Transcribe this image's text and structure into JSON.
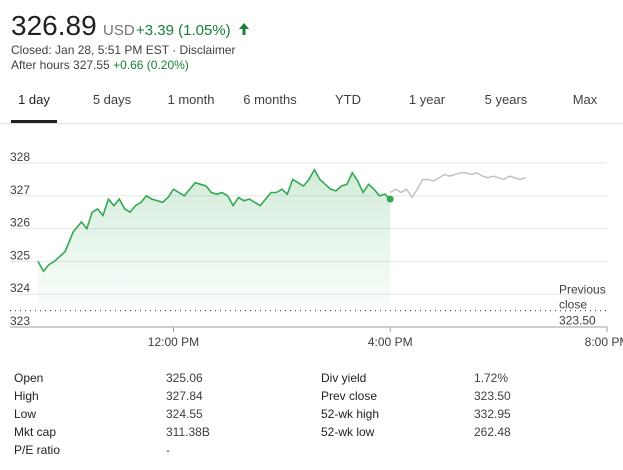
{
  "quote": {
    "price": "326.89",
    "currency": "USD",
    "change": "+3.39 (1.05%)",
    "closed_text": "Closed: Jan 28, 5:51 PM EST · ",
    "disclaimer": "Disclaimer",
    "after_hours_label": "After hours 327.55 ",
    "after_hours_change": "+0.66 (0.20%)",
    "accent_color": "#188038",
    "up_icon": "arrow-up-icon"
  },
  "tabs": [
    {
      "label": "1 day",
      "active": true
    },
    {
      "label": "5 days"
    },
    {
      "label": "1 month"
    },
    {
      "label": "6 months"
    },
    {
      "label": "YTD"
    },
    {
      "label": "1 year"
    },
    {
      "label": "5 years"
    },
    {
      "label": "Max"
    }
  ],
  "chart_data": {
    "type": "line",
    "ylim": [
      323,
      328.6
    ],
    "y_ticks": [
      "328",
      "327",
      "326",
      "325",
      "324",
      "323"
    ],
    "x_ticks": [
      "12:00 PM",
      "4:00 PM",
      "8:00 PM"
    ],
    "previous_close_label": [
      "Previous",
      "close"
    ],
    "previous_close_value": "323.50",
    "previous_close": 323.5,
    "grid": true,
    "line_color": "#34a853",
    "after_hours_color": "#bdbdbd",
    "series": [
      {
        "x": [
          9.5,
          9.6,
          9.7,
          9.8,
          9.9,
          10.0,
          10.15,
          10.3,
          10.4,
          10.5,
          10.6,
          10.7,
          10.8,
          10.9,
          11.0,
          11.1,
          11.2,
          11.3,
          11.4,
          11.5,
          11.6,
          11.7,
          11.8,
          11.9,
          12.0,
          12.1,
          12.2,
          12.3,
          12.4,
          12.5,
          12.6,
          12.7,
          12.8,
          12.9,
          13.0,
          13.1,
          13.2,
          13.3,
          13.4,
          13.5,
          13.6,
          13.7,
          13.8,
          13.9,
          14.0,
          14.1,
          14.2,
          14.3,
          14.4,
          14.5,
          14.6,
          14.7,
          14.8,
          14.9,
          15.0,
          15.1,
          15.2,
          15.3,
          15.4,
          15.5,
          15.6,
          15.7,
          15.8,
          15.9,
          16.0
        ],
        "values": [
          325.0,
          324.7,
          324.9,
          325.0,
          325.15,
          325.3,
          325.9,
          326.2,
          326.0,
          326.5,
          326.6,
          326.4,
          326.9,
          326.7,
          326.9,
          326.6,
          326.5,
          326.7,
          326.8,
          327.0,
          326.9,
          326.85,
          326.8,
          326.95,
          327.2,
          327.1,
          327.0,
          327.2,
          327.4,
          327.35,
          327.3,
          327.1,
          327.05,
          327.1,
          327.0,
          326.7,
          326.95,
          326.85,
          326.9,
          326.8,
          326.7,
          326.9,
          327.1,
          327.1,
          327.2,
          327.05,
          327.5,
          327.4,
          327.3,
          327.5,
          327.8,
          327.5,
          327.35,
          327.2,
          327.15,
          327.3,
          327.35,
          327.7,
          327.45,
          327.1,
          327.35,
          327.2,
          327.0,
          327.05,
          326.9
        ]
      },
      {
        "x": [
          16.0,
          16.1,
          16.2,
          16.3,
          16.4,
          16.5,
          16.6,
          16.7,
          16.8,
          16.9,
          17.0,
          17.1,
          17.2,
          17.3,
          17.4,
          17.5,
          17.6,
          17.7,
          17.8,
          17.9,
          18.0,
          18.1,
          18.2,
          18.3,
          18.4,
          18.5
        ],
        "values": [
          327.1,
          327.2,
          327.1,
          327.2,
          326.95,
          327.2,
          327.5,
          327.5,
          327.45,
          327.55,
          327.65,
          327.6,
          327.65,
          327.7,
          327.7,
          327.65,
          327.7,
          327.6,
          327.55,
          327.6,
          327.55,
          327.5,
          327.6,
          327.55,
          327.5,
          327.55
        ]
      }
    ]
  },
  "stats": {
    "col1": [
      {
        "label": "Open",
        "value": "325.06"
      },
      {
        "label": "High",
        "value": "327.84"
      },
      {
        "label": "Low",
        "value": "324.55"
      },
      {
        "label": "Mkt cap",
        "value": "311.38B"
      },
      {
        "label": "P/E ratio",
        "value": "-"
      }
    ],
    "col2": [
      {
        "label": "Div yield",
        "value": "1.72%"
      },
      {
        "label": "Prev close",
        "value": "323.50"
      },
      {
        "label": "52-wk high",
        "value": "332.95"
      },
      {
        "label": "52-wk low",
        "value": "262.48"
      }
    ]
  }
}
